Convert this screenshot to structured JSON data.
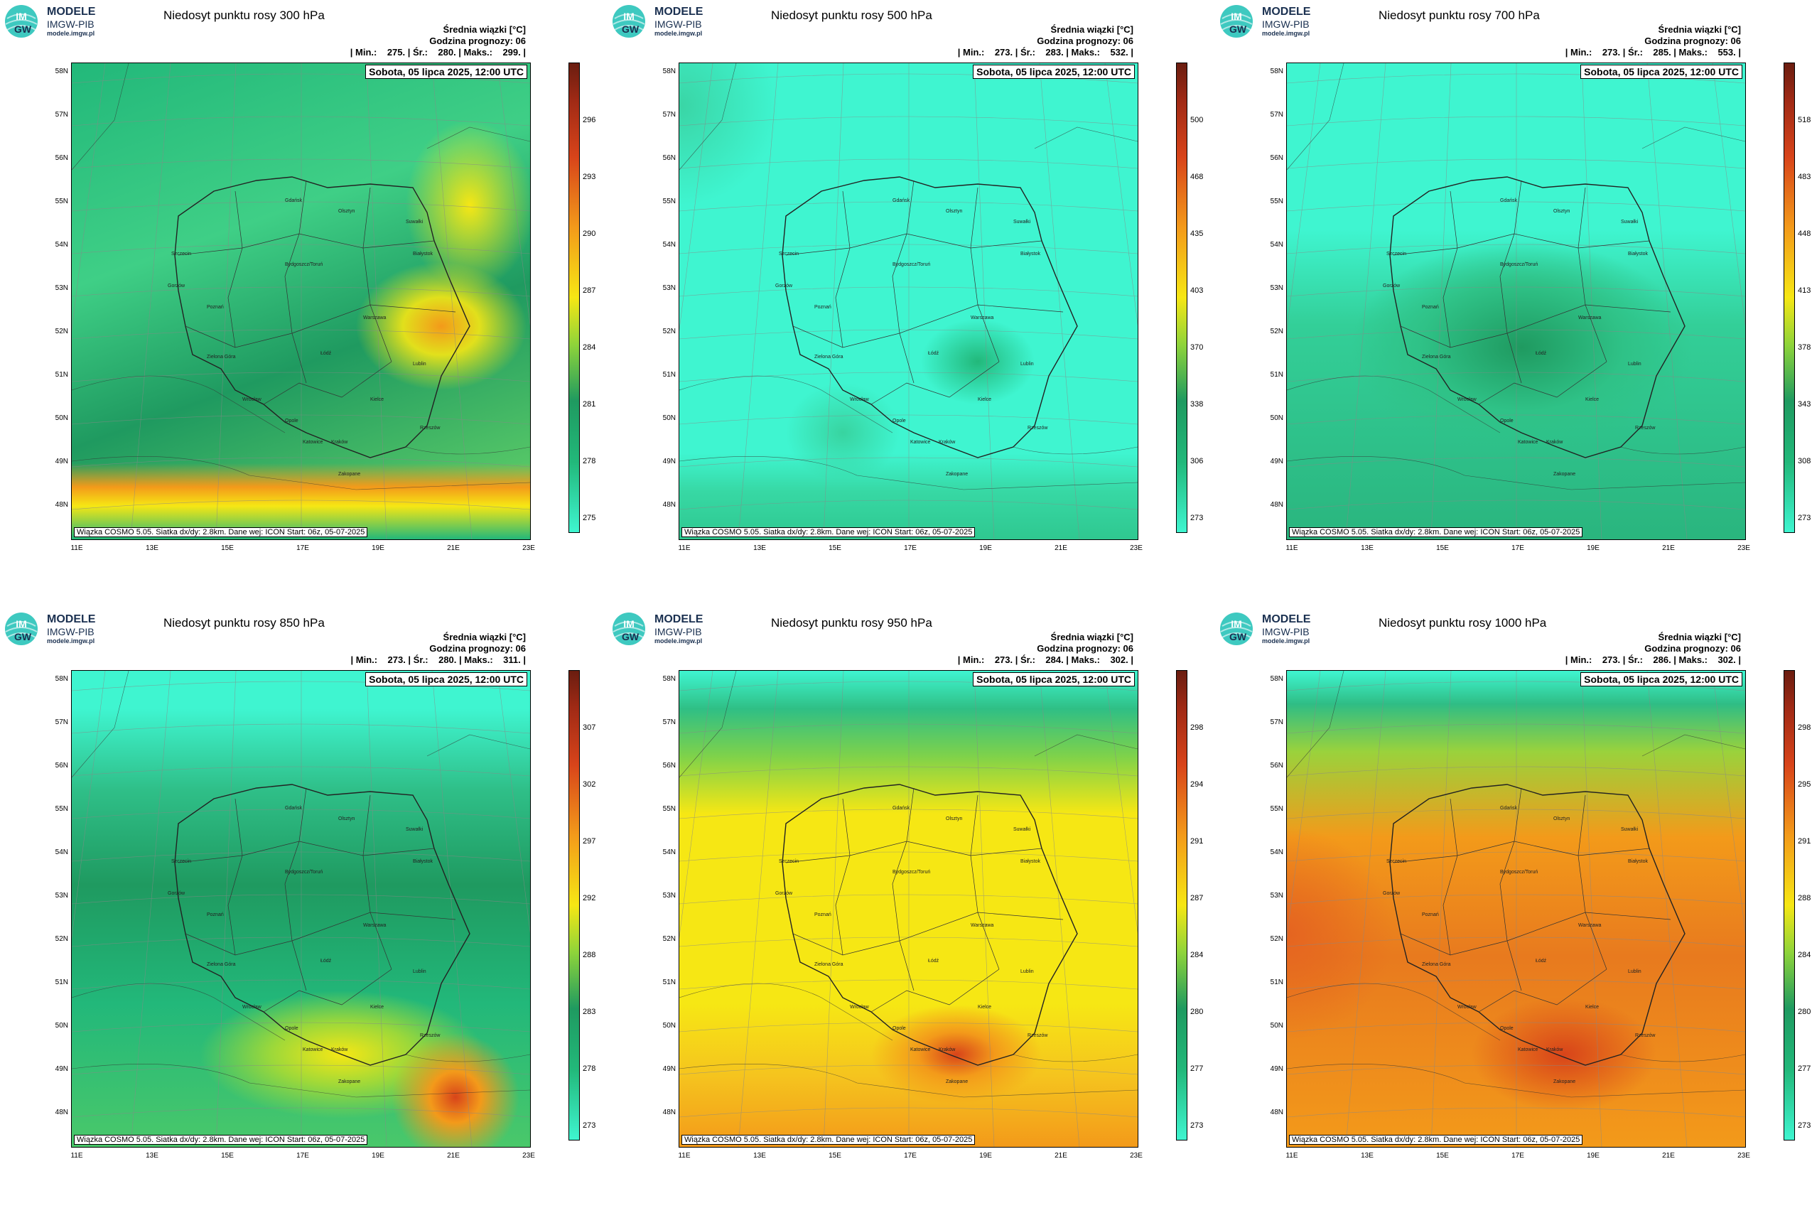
{
  "logo": {
    "line1": "MODELE",
    "line2": "IMGW-PIB",
    "line3": "modele.imgw.pl",
    "badge_top": "IM",
    "badge_bottom": "GW"
  },
  "colors": {
    "teal": "#3ff5d0",
    "green": "#22b87a",
    "darkgreen": "#1f9a60",
    "yellow": "#f6e714",
    "orange": "#f39a1a",
    "red": "#d8441a",
    "brown": "#6a1d10"
  },
  "panels": [
    {
      "title": "Niedosyt punktu rosy 300 hPa",
      "stat_header": "Średnia wiązki [°C]",
      "stat_forecast": "Godzina prognozy: 06",
      "stat_values": "| Min.:    275. | Śr.:    280. | Maks.:    299. |",
      "date": "Sobota, 05 lipca 2025, 12:00 UTC",
      "footer": "Wiązka COSMO 5.05. Siatka dx/dy: 2.8km. Dane wej: ICON Start: 06z, 05-07-2025",
      "colorbar_ticks": [
        "296",
        "293",
        "290",
        "287",
        "284",
        "281",
        "278",
        "275"
      ],
      "scheme": "green-yellow"
    },
    {
      "title": "Niedosyt punktu rosy 500 hPa",
      "stat_header": "Średnia wiązki [°C]",
      "stat_forecast": "Godzina prognozy: 06",
      "stat_values": "| Min.:    273. | Śr.:    283. | Maks.:    532. |",
      "date": "Sobota, 05 lipca 2025, 12:00 UTC",
      "footer": "Wiązka COSMO 5.05. Siatka dx/dy: 2.8km. Dane wej: ICON Start: 06z, 05-07-2025",
      "colorbar_ticks": [
        "500",
        "468",
        "435",
        "403",
        "370",
        "338",
        "306",
        "273"
      ],
      "scheme": "teal"
    },
    {
      "title": "Niedosyt punktu rosy 700 hPa",
      "stat_header": "Średnia wiązki [°C]",
      "stat_forecast": "Godzina prognozy: 06",
      "stat_values": "| Min.:    273. | Śr.:    285. | Maks.:    553. |",
      "date": "Sobota, 05 lipca 2025, 12:00 UTC",
      "footer": "Wiązka COSMO 5.05. Siatka dx/dy: 2.8km. Dane wej: ICON Start: 06z, 05-07-2025",
      "colorbar_ticks": [
        "518",
        "483",
        "448",
        "413",
        "378",
        "343",
        "308",
        "273"
      ],
      "scheme": "teal-green"
    },
    {
      "title": "Niedosyt punktu rosy 850 hPa",
      "stat_header": "Średnia wiązki [°C]",
      "stat_forecast": "Godzina prognozy: 06",
      "stat_values": "| Min.:    273. | Śr.:    280. | Maks.:    311. |",
      "date": "Sobota, 05 lipca 2025, 12:00 UTC",
      "footer": "Wiązka COSMO 5.05. Siatka dx/dy: 2.8km. Dane wej: ICON Start: 06z, 05-07-2025",
      "colorbar_ticks": [
        "307",
        "302",
        "297",
        "292",
        "288",
        "283",
        "278",
        "273"
      ],
      "scheme": "green-south"
    },
    {
      "title": "Niedosyt punktu rosy 950 hPa",
      "stat_header": "Średnia wiązki [°C]",
      "stat_forecast": "Godzina prognozy: 06",
      "stat_values": "| Min.:    273. | Śr.:    284. | Maks.:    302. |",
      "date": "Sobota, 05 lipca 2025, 12:00 UTC",
      "footer": "Wiązka COSMO 5.05. Siatka dx/dy: 2.8km. Dane wej: ICON Start: 06z, 05-07-2025",
      "colorbar_ticks": [
        "298",
        "294",
        "291",
        "287",
        "284",
        "280",
        "277",
        "273"
      ],
      "scheme": "yellow"
    },
    {
      "title": "Niedosyt punktu rosy 1000 hPa",
      "stat_header": "Średnia wiązki [°C]",
      "stat_forecast": "Godzina prognozy: 06",
      "stat_values": "| Min.:    273. | Śr.:    286. | Maks.:    302. |",
      "date": "Sobota, 05 lipca 2025, 12:00 UTC",
      "footer": "Wiązka COSMO 5.05. Siatka dx/dy: 2.8km. Dane wej: ICON Start: 06z, 05-07-2025",
      "colorbar_ticks": [
        "298",
        "295",
        "291",
        "288",
        "284",
        "280",
        "277",
        "273"
      ],
      "scheme": "orange"
    }
  ],
  "lat_labels": [
    "58N",
    "57N",
    "56N",
    "55N",
    "54N",
    "53N",
    "52N",
    "51N",
    "50N",
    "49N",
    "48N"
  ],
  "lon_labels": [
    "11E",
    "13E",
    "15E",
    "17E",
    "19E",
    "21E",
    "23E"
  ],
  "cities": [
    "Gdańsk",
    "Olsztyn",
    "Suwałki",
    "Szczecin",
    "Bydgoszcz/Toruń",
    "Białystok",
    "Gorzów",
    "Poznań",
    "Warszawa",
    "Zielona Góra",
    "Łódź",
    "Lublin",
    "Wrocław",
    "Kielce",
    "Opole",
    "Katowice",
    "Kraków",
    "Rzeszów",
    "Zakopane"
  ]
}
